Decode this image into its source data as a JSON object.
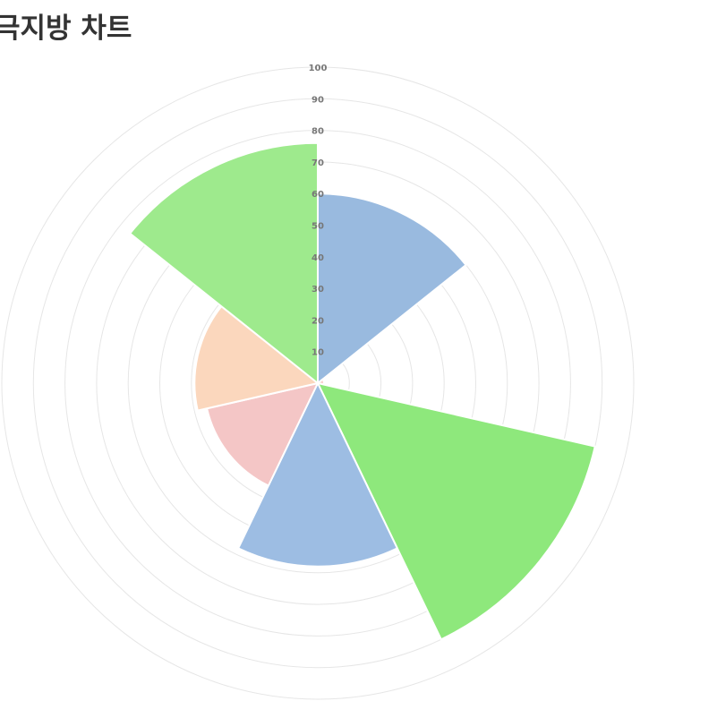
{
  "page": {
    "title": "극지방 차트"
  },
  "chart_data": {
    "type": "polarArea",
    "title": "극지방 차트",
    "r_range": [
      0,
      100
    ],
    "r_ticks": [
      "10",
      "20",
      "30",
      "40",
      "50",
      "60",
      "70",
      "80",
      "90",
      "100"
    ],
    "grid": true,
    "legend": "none",
    "start_angle": "top",
    "direction": "clockwise",
    "values": [
      60,
      2,
      90,
      58,
      36,
      39,
      76
    ],
    "colors": [
      "#99badf",
      "#f8d0cc",
      "#8ee87c",
      "#9dbde3",
      "#f4c6c6",
      "#fbd7bd",
      "#9eea8d"
    ]
  }
}
